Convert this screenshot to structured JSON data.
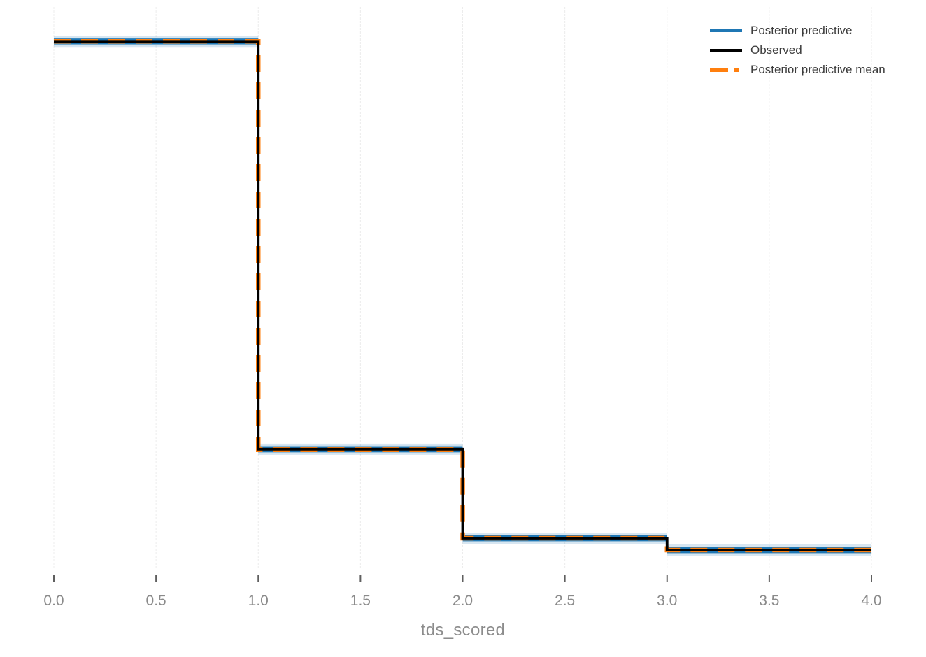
{
  "figure": {
    "background": "#ffffff"
  },
  "legend": {
    "position": "top-right",
    "items": [
      {
        "label": "Posterior predictive",
        "color": "#1f77b4",
        "style": "solid"
      },
      {
        "label": "Observed",
        "color": "#000000",
        "style": "solid"
      },
      {
        "label": "Posterior predictive mean",
        "color": "#ff7f0e",
        "style": "dashed"
      }
    ]
  },
  "axis": {
    "grid_color": "#ececec",
    "tick_color": "#5f5f5f",
    "tick_label_color": "#8a8a8a",
    "label_color": "#8c8c8c"
  },
  "chart_data": {
    "type": "step",
    "title": "",
    "xlabel": "tds_scored",
    "ylabel": "",
    "xlim": [
      0,
      4
    ],
    "ylim": [
      0,
      0.8
    ],
    "grid": "vertical-only",
    "y_axis_visible": false,
    "legend_position": "top-right",
    "x_ticks": [
      0.0,
      0.5,
      1.0,
      1.5,
      2.0,
      2.5,
      3.0,
      3.5,
      4.0
    ],
    "x_tick_labels": [
      "0.0",
      "0.5",
      "1.0",
      "1.5",
      "2.0",
      "2.5",
      "3.0",
      "3.5",
      "4.0"
    ],
    "bin_edges": [
      0,
      1,
      2,
      3,
      4
    ],
    "categories": [
      0,
      1,
      2,
      3
    ],
    "series": [
      {
        "name": "Posterior predictive",
        "style": "step-band",
        "color": "#1f77b4",
        "values": [
          0.755,
          0.172,
          0.045,
          0.028
        ]
      },
      {
        "name": "Observed",
        "style": "step-solid",
        "color": "#000000",
        "values": [
          0.755,
          0.172,
          0.045,
          0.028
        ]
      },
      {
        "name": "Posterior predictive mean",
        "style": "step-dashed",
        "color": "#ff7f0e",
        "values": [
          0.755,
          0.172,
          0.045,
          0.028
        ]
      }
    ]
  }
}
